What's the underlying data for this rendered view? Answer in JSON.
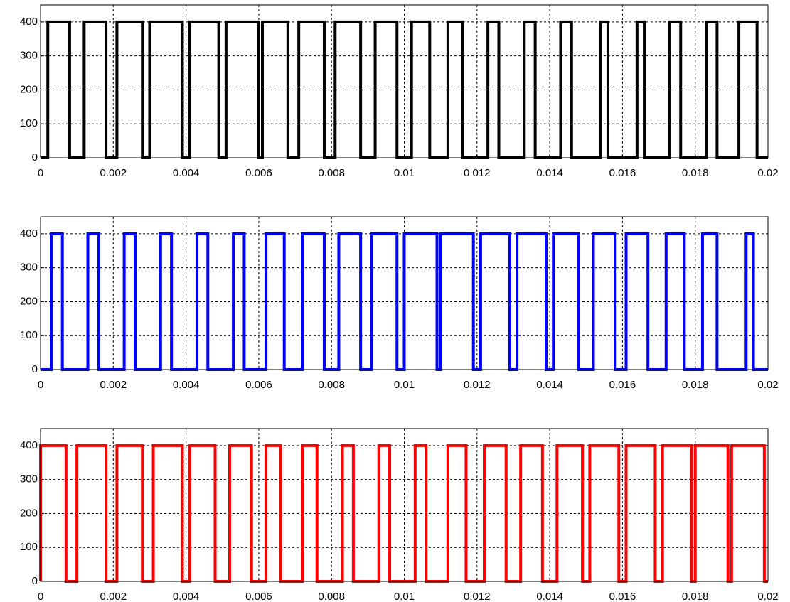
{
  "chart_data": [
    {
      "type": "line",
      "color": "#000000",
      "xlim": [
        0,
        0.02
      ],
      "ylim": [
        0,
        450
      ],
      "xticks": [
        0,
        0.002,
        0.004,
        0.006,
        0.008,
        0.01,
        0.012,
        0.014,
        0.016,
        0.018,
        0.02
      ],
      "yticks": [
        0,
        100,
        200,
        300,
        400
      ],
      "grid": true,
      "x": [
        0,
        0.0002,
        0.0002,
        0.0008,
        0.0008,
        0.0012,
        0.0012,
        0.0018,
        0.0018,
        0.0021,
        0.0021,
        0.0028,
        0.0028,
        0.003,
        0.003,
        0.0039,
        0.0039,
        0.0041,
        0.0041,
        0.0049,
        0.0049,
        0.0051,
        0.0051,
        0.006,
        0.006,
        0.0061,
        0.0061,
        0.0068,
        0.0068,
        0.0071,
        0.0071,
        0.0078,
        0.0078,
        0.0081,
        0.0081,
        0.0088,
        0.0088,
        0.0092,
        0.0092,
        0.0098,
        0.0098,
        0.0102,
        0.0102,
        0.0107,
        0.0107,
        0.0112,
        0.0112,
        0.0116,
        0.0116,
        0.0123,
        0.0123,
        0.0126,
        0.0126,
        0.0133,
        0.0133,
        0.0136,
        0.0136,
        0.0143,
        0.0143,
        0.0146,
        0.0146,
        0.0154,
        0.0154,
        0.0156,
        0.0156,
        0.0164,
        0.0164,
        0.0166,
        0.0166,
        0.0173,
        0.0173,
        0.0176,
        0.0176,
        0.0183,
        0.0183,
        0.0186,
        0.0186,
        0.0192,
        0.0192,
        0.0197,
        0.0197,
        0.02
      ],
      "values": [
        0,
        0,
        400,
        400,
        0,
        0,
        400,
        400,
        0,
        0,
        400,
        400,
        0,
        0,
        400,
        400,
        0,
        0,
        400,
        400,
        0,
        0,
        400,
        400,
        0,
        0,
        400,
        400,
        0,
        0,
        400,
        400,
        0,
        0,
        400,
        400,
        0,
        0,
        400,
        400,
        0,
        0,
        400,
        400,
        0,
        0,
        400,
        400,
        0,
        0,
        400,
        400,
        0,
        0,
        400,
        400,
        0,
        0,
        400,
        400,
        0,
        0,
        400,
        400,
        0,
        0,
        400,
        400,
        0,
        0,
        400,
        400,
        0,
        0,
        400,
        400,
        0,
        0,
        400,
        400,
        0,
        0
      ]
    },
    {
      "type": "line",
      "color": "#0000ff",
      "xlim": [
        0,
        0.02
      ],
      "ylim": [
        0,
        450
      ],
      "xticks": [
        0,
        0.002,
        0.004,
        0.006,
        0.008,
        0.01,
        0.012,
        0.014,
        0.016,
        0.018,
        0.02
      ],
      "yticks": [
        0,
        100,
        200,
        300,
        400
      ],
      "grid": true,
      "x": [
        0,
        0.0003,
        0.0003,
        0.0006,
        0.0006,
        0.0013,
        0.0013,
        0.0016,
        0.0016,
        0.0023,
        0.0023,
        0.0026,
        0.0026,
        0.0033,
        0.0033,
        0.0036,
        0.0036,
        0.0043,
        0.0043,
        0.0046,
        0.0046,
        0.0053,
        0.0053,
        0.0056,
        0.0056,
        0.0062,
        0.0062,
        0.0067,
        0.0067,
        0.0072,
        0.0072,
        0.0078,
        0.0078,
        0.0082,
        0.0082,
        0.0088,
        0.0088,
        0.0091,
        0.0091,
        0.0098,
        0.0098,
        0.01,
        0.01,
        0.0109,
        0.0109,
        0.011,
        0.011,
        0.0119,
        0.0119,
        0.0121,
        0.0121,
        0.0129,
        0.0129,
        0.0131,
        0.0131,
        0.0139,
        0.0139,
        0.0141,
        0.0141,
        0.0148,
        0.0148,
        0.0152,
        0.0152,
        0.0158,
        0.0158,
        0.0161,
        0.0161,
        0.0167,
        0.0167,
        0.0172,
        0.0172,
        0.0177,
        0.0177,
        0.0182,
        0.0182,
        0.0186,
        0.0186,
        0.0194,
        0.0194,
        0.0196,
        0.0196,
        0.02
      ],
      "values": [
        0,
        0,
        400,
        400,
        0,
        0,
        400,
        400,
        0,
        0,
        400,
        400,
        0,
        0,
        400,
        400,
        0,
        0,
        400,
        400,
        0,
        0,
        400,
        400,
        0,
        0,
        400,
        400,
        0,
        0,
        400,
        400,
        0,
        0,
        400,
        400,
        0,
        0,
        400,
        400,
        0,
        0,
        400,
        400,
        0,
        0,
        400,
        400,
        0,
        0,
        400,
        400,
        0,
        0,
        400,
        400,
        0,
        0,
        400,
        400,
        0,
        0,
        400,
        400,
        0,
        0,
        400,
        400,
        0,
        0,
        400,
        400,
        0,
        0,
        400,
        400,
        0,
        0,
        400,
        400,
        0,
        0
      ]
    },
    {
      "type": "line",
      "color": "#ff0000",
      "xlim": [
        0,
        0.02
      ],
      "ylim": [
        0,
        450
      ],
      "xticks": [
        0,
        0.002,
        0.004,
        0.006,
        0.008,
        0.01,
        0.012,
        0.014,
        0.016,
        0.018,
        0.02
      ],
      "yticks": [
        0,
        100,
        200,
        300,
        400
      ],
      "grid": true,
      "x": [
        0,
        0,
        0.0007,
        0.0007,
        0.001,
        0.001,
        0.0018,
        0.0018,
        0.0021,
        0.0021,
        0.0028,
        0.0028,
        0.0031,
        0.0031,
        0.0039,
        0.0039,
        0.0041,
        0.0041,
        0.0048,
        0.0048,
        0.0052,
        0.0052,
        0.0058,
        0.0058,
        0.0062,
        0.0062,
        0.0066,
        0.0066,
        0.0072,
        0.0072,
        0.0076,
        0.0076,
        0.0083,
        0.0083,
        0.0086,
        0.0086,
        0.0093,
        0.0093,
        0.0096,
        0.0096,
        0.0103,
        0.0103,
        0.0106,
        0.0106,
        0.0112,
        0.0112,
        0.0117,
        0.0117,
        0.0122,
        0.0122,
        0.0128,
        0.0128,
        0.0132,
        0.0132,
        0.0138,
        0.0138,
        0.0142,
        0.0142,
        0.0149,
        0.0149,
        0.0151,
        0.0151,
        0.0159,
        0.0159,
        0.0161,
        0.0161,
        0.0169,
        0.0169,
        0.0171,
        0.0171,
        0.0179,
        0.0179,
        0.018,
        0.018,
        0.0189,
        0.0189,
        0.019,
        0.019,
        0.0199,
        0.0199,
        0.02
      ],
      "values": [
        0,
        400,
        400,
        0,
        0,
        400,
        400,
        0,
        0,
        400,
        400,
        0,
        0,
        400,
        400,
        0,
        0,
        400,
        400,
        0,
        0,
        400,
        400,
        0,
        0,
        400,
        400,
        0,
        0,
        400,
        400,
        0,
        0,
        400,
        400,
        0,
        0,
        400,
        400,
        0,
        0,
        400,
        400,
        0,
        0,
        400,
        400,
        0,
        0,
        400,
        400,
        0,
        0,
        400,
        400,
        0,
        0,
        400,
        400,
        0,
        0,
        400,
        400,
        0,
        0,
        400,
        400,
        0,
        0,
        400,
        400,
        0,
        0,
        400,
        400,
        0,
        0,
        400,
        400,
        0,
        0
      ]
    }
  ]
}
